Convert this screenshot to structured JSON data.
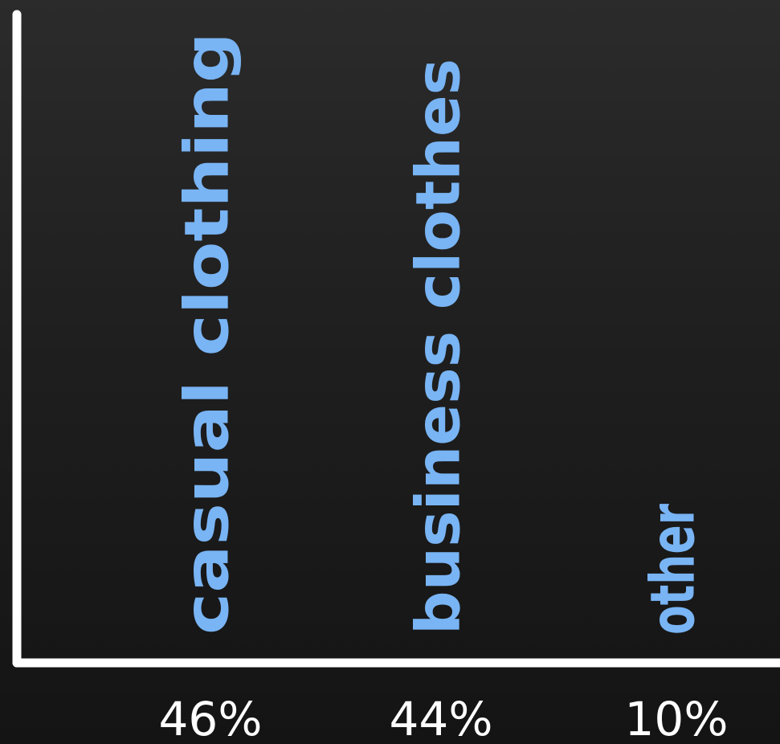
{
  "chart_data": {
    "type": "bar",
    "categories": [
      "casual clothing",
      "business clothes",
      "other"
    ],
    "values": [
      46,
      44,
      10
    ],
    "value_labels": [
      "46%",
      "44%",
      "10%"
    ],
    "unit": "%",
    "ylim": [
      0,
      46
    ],
    "grid": false,
    "colors": {
      "label": "#79b4f4",
      "axis": "#ffffff",
      "value_text": "#ffffff",
      "background_top": "#2b2b2b",
      "background_bottom": "#141414"
    }
  }
}
